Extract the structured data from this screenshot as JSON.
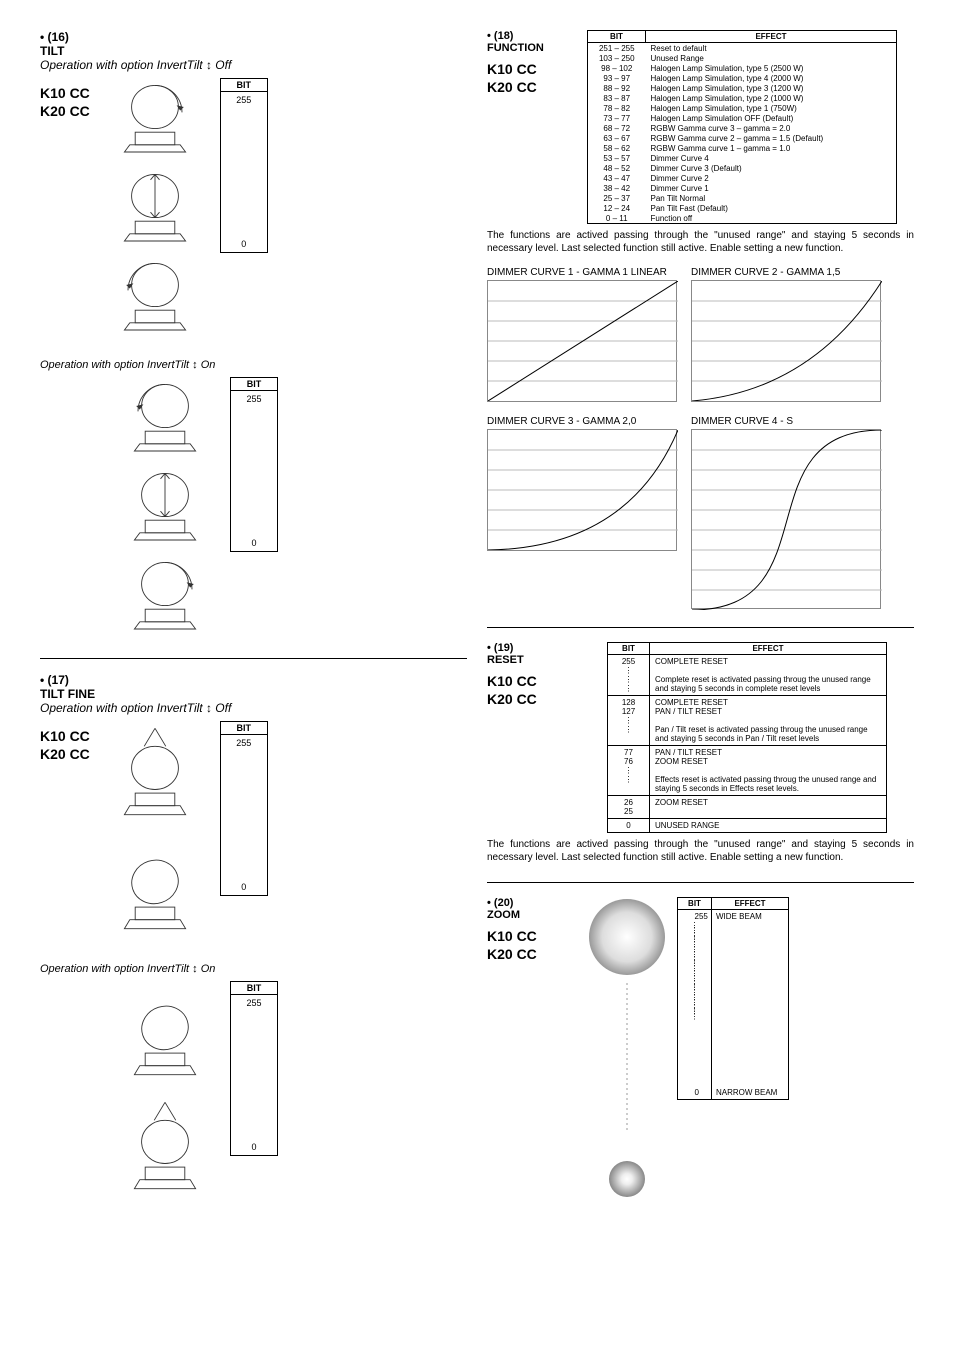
{
  "sec16": {
    "num": "• (16)",
    "title": "TILT",
    "sub_off": "Operation with option InvertTilt  ↕  Off",
    "sub_on": "Operation with option InvertTilt  ↕  On",
    "models1": "K10 CC",
    "models2": "K20 CC",
    "bit_header": "BIT",
    "bit_top": "255",
    "bit_bot": "0"
  },
  "sec17": {
    "num": "• (17)",
    "title": "TILT FINE",
    "sub_off": "Operation with option InvertTilt  ↕  Off",
    "sub_on": "Operation with option InvertTilt  ↕  On",
    "models1": "K10 CC",
    "models2": "K20 CC",
    "bit_header": "BIT",
    "bit_top": "255",
    "bit_bot": "0"
  },
  "sec18": {
    "num": "• (18)",
    "title": "FUNCTION",
    "models1": "K10 CC",
    "models2": "K20 CC",
    "th_bit": "BIT",
    "th_eff": "EFFECT",
    "rows": [
      [
        "251 – 255",
        "Reset to default"
      ],
      [
        "103 – 250",
        "Unused Range"
      ],
      [
        "98 – 102",
        "Halogen Lamp Simulation, type 5 (2500 W)"
      ],
      [
        "93 – 97",
        "Halogen Lamp Simulation, type 4 (2000 W)"
      ],
      [
        "88 – 92",
        "Halogen Lamp Simulation, type 3 (1200 W)"
      ],
      [
        "83 – 87",
        "Halogen Lamp Simulation, type 2 (1000 W)"
      ],
      [
        "78 – 82",
        "Halogen Lamp Simulation, type 1 (750W)"
      ],
      [
        "73 – 77",
        "Halogen Lamp Simulation OFF (Default)"
      ],
      [
        "68 – 72",
        "RGBW Gamma curve 3 – gamma = 2.0"
      ],
      [
        "63 – 67",
        "RGBW Gamma curve 2 – gamma = 1.5 (Default)"
      ],
      [
        "58 – 62",
        "RGBW Gamma curve 1 – gamma = 1.0"
      ],
      [
        "53 – 57",
        "Dimmer Curve 4"
      ],
      [
        "48 – 52",
        "Dimmer Curve 3 (Default)"
      ],
      [
        "43 – 47",
        "Dimmer Curve 2"
      ],
      [
        "38 – 42",
        "Dimmer Curve 1"
      ],
      [
        "25 – 37",
        "Pan Tilt Normal"
      ],
      [
        "12 – 24",
        "Pan Tilt Fast (Default)"
      ],
      [
        "0 – 11",
        "Function off"
      ]
    ],
    "note": "The functions are actived passing through the \"unused range\" and staying 5 seconds in necessary level. Last selected function still active. Enable setting a new function.",
    "curve1": "DIMMER CURVE 1 - GAMMA 1 LINEAR",
    "curve2": "DIMMER CURVE 2 - GAMMA 1,5",
    "curve3": "DIMMER CURVE 3 - GAMMA 2,0",
    "curve4": "DIMMER CURVE 4 - S"
  },
  "sec19": {
    "num": "• (19)",
    "title": "RESET",
    "models1": "K10 CC",
    "models2": "K20 CC",
    "th_bit": "BIT",
    "th_eff": "EFFECT",
    "r1b": "255",
    "r1e": "COMPLETE RESET",
    "r2e": "Complete reset is activated passing throug the unused range and staying 5 seconds in complete reset levels",
    "r3b": "128\n127",
    "r3e": "COMPLETE RESET\nPAN / TILT RESET",
    "r4e": "Pan / Tilt reset is activated passing throug the unused range and staying 5 seconds in Pan / Tilt reset levels",
    "r5b": "77\n76",
    "r5e": "PAN / TILT RESET\nZOOM RESET",
    "r6e": "Effects reset is activated passing throug the unused range and staying 5 seconds in Effects reset levels.",
    "r7b": "26\n25",
    "r7e": "ZOOM RESET",
    "r8b": "0",
    "r8e": "UNUSED RANGE",
    "note": "The functions are actived passing through the \"unused range\" and staying 5 seconds in necessary level. Last selected function still active. Enable setting a new function."
  },
  "sec20": {
    "num": "• (20)",
    "title": "ZOOM",
    "models1": "K10 CC",
    "models2": "K20 CC",
    "th_bit": "BIT",
    "th_eff": "EFFECT",
    "bit_top": "255",
    "eff_top": "WIDE BEAM",
    "bit_bot": "0",
    "eff_bot": "NARROW BEAM"
  },
  "colors": {
    "grid": "#bbb",
    "line": "#000"
  }
}
